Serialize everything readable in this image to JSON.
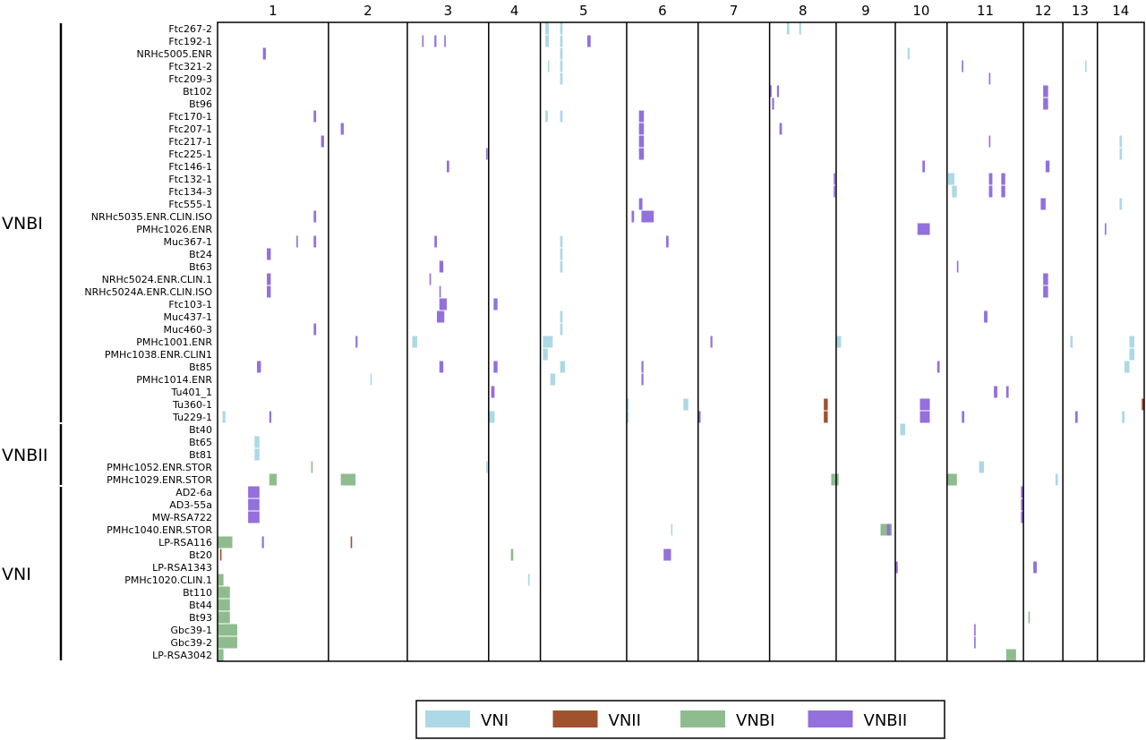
{
  "colors": {
    "VNI": "#add8e6",
    "VNII": "#a0522d",
    "VNBI": "#8fbc8f",
    "VNBII": "#9370db",
    "frame": "#000000"
  },
  "chart_data": {
    "type": "heatmap",
    "title": "",
    "xlabel": "",
    "ylabel": "",
    "chromosomes": [
      {
        "label": "1",
        "start": 0,
        "end": 2.25
      },
      {
        "label": "2",
        "start": 2.25,
        "end": 3.85
      },
      {
        "label": "3",
        "start": 3.85,
        "end": 5.5
      },
      {
        "label": "4",
        "start": 5.5,
        "end": 6.55
      },
      {
        "label": "5",
        "start": 6.55,
        "end": 8.3
      },
      {
        "label": "6",
        "start": 8.3,
        "end": 9.75
      },
      {
        "label": "7",
        "start": 9.75,
        "end": 11.2
      },
      {
        "label": "8",
        "start": 11.2,
        "end": 12.55
      },
      {
        "label": "9",
        "start": 12.55,
        "end": 13.75
      },
      {
        "label": "10",
        "start": 13.75,
        "end": 14.8
      },
      {
        "label": "11",
        "start": 14.8,
        "end": 16.35
      },
      {
        "label": "12",
        "start": 16.35,
        "end": 17.15
      },
      {
        "label": "13",
        "start": 17.15,
        "end": 17.85
      },
      {
        "label": "14",
        "start": 17.85,
        "end": 18.8
      }
    ],
    "x_range": [
      0,
      18.8
    ],
    "samples": [
      "Ftc267-2",
      "Ftc192-1",
      "NRHc5005.ENR",
      "Ftc321-2",
      "Ftc209-3",
      "Bt102",
      "Bt96",
      "Ftc170-1",
      "Ftc207-1",
      "Ftc217-1",
      "Ftc225-1",
      "Ftc146-1",
      "Ftc132-1",
      "Ftc134-3",
      "Ftc555-1",
      "NRHc5035.ENR.CLIN.ISO",
      "PMHc1026.ENR",
      "Muc367-1",
      "Bt24",
      "Bt63",
      "NRHc5024.ENR.CLIN.1",
      "NRHc5024A.ENR.CLIN.ISO",
      "Ftc103-1",
      "Muc437-1",
      "Muc460-3",
      "PMHc1001.ENR",
      "PMHc1038.ENR.CLIN1",
      "Bt85",
      "PMHc1014.ENR",
      "Tu401_1",
      "Tu360-1",
      "Tu229-1",
      "Bt40",
      "Bt65",
      "Bt81",
      "PMHc1052.ENR.STOR",
      "PMHc1029.ENR.STOR",
      "AD2-6a",
      "AD3-55a",
      "MW-RSA722",
      "PMHc1040.ENR.STOR",
      "LP-RSA116",
      "Bt20",
      "LP-RSA1343",
      "PMHc1020.CLIN.1",
      "Bt110",
      "Bt44",
      "Bt93",
      "Gbc39-1",
      "Gbc39-2",
      "LP-RSA3042"
    ],
    "groups": [
      {
        "label": "VNBI",
        "first": 0,
        "last": 31
      },
      {
        "label": "VNBII",
        "first": 32,
        "last": 36
      },
      {
        "label": "VNI",
        "first": 37,
        "last": 50
      }
    ],
    "legend": {
      "placement": "bottom-center",
      "entries": [
        {
          "label": "VNI",
          "color_key": "VNI"
        },
        {
          "label": "VNII",
          "color_key": "VNII"
        },
        {
          "label": "VNBI",
          "color_key": "VNBI"
        },
        {
          "label": "VNBII",
          "color_key": "VNBII"
        }
      ]
    },
    "segments": [
      {
        "row": 0,
        "start": 6.65,
        "end": 6.72,
        "type": "VNI"
      },
      {
        "row": 0,
        "start": 6.95,
        "end": 7.0,
        "type": "VNI"
      },
      {
        "row": 0,
        "start": 11.55,
        "end": 11.6,
        "type": "VNI"
      },
      {
        "row": 0,
        "start": 11.8,
        "end": 11.84,
        "type": "VNI"
      },
      {
        "row": 1,
        "start": 4.15,
        "end": 4.18,
        "type": "VNBII"
      },
      {
        "row": 1,
        "start": 4.4,
        "end": 4.44,
        "type": "VNBII"
      },
      {
        "row": 1,
        "start": 4.6,
        "end": 4.63,
        "type": "VNBII"
      },
      {
        "row": 1,
        "start": 6.65,
        "end": 6.72,
        "type": "VNI"
      },
      {
        "row": 1,
        "start": 6.95,
        "end": 7.0,
        "type": "VNI"
      },
      {
        "row": 1,
        "start": 7.5,
        "end": 7.57,
        "type": "VNBII"
      },
      {
        "row": 2,
        "start": 0.92,
        "end": 0.98,
        "type": "VNBII"
      },
      {
        "row": 2,
        "start": 6.95,
        "end": 7.0,
        "type": "VNI"
      },
      {
        "row": 2,
        "start": 14.0,
        "end": 14.04,
        "type": "VNI"
      },
      {
        "row": 3,
        "start": 6.7,
        "end": 6.73,
        "type": "VNI"
      },
      {
        "row": 3,
        "start": 6.95,
        "end": 7.0,
        "type": "VNI"
      },
      {
        "row": 3,
        "start": 15.1,
        "end": 15.13,
        "type": "VNBII"
      },
      {
        "row": 3,
        "start": 17.6,
        "end": 17.63,
        "type": "VNI"
      },
      {
        "row": 4,
        "start": 6.95,
        "end": 7.0,
        "type": "VNI"
      },
      {
        "row": 4,
        "start": 15.65,
        "end": 15.68,
        "type": "VNBII"
      },
      {
        "row": 5,
        "start": 11.2,
        "end": 11.24,
        "type": "VNBII"
      },
      {
        "row": 5,
        "start": 11.35,
        "end": 11.39,
        "type": "VNBII"
      },
      {
        "row": 5,
        "start": 16.75,
        "end": 16.85,
        "type": "VNBII"
      },
      {
        "row": 6,
        "start": 11.25,
        "end": 11.29,
        "type": "VNBII"
      },
      {
        "row": 6,
        "start": 16.75,
        "end": 16.85,
        "type": "VNBII"
      },
      {
        "row": 7,
        "start": 1.95,
        "end": 2.0,
        "type": "VNBII"
      },
      {
        "row": 7,
        "start": 6.65,
        "end": 6.7,
        "type": "VNI"
      },
      {
        "row": 7,
        "start": 6.95,
        "end": 7.0,
        "type": "VNI"
      },
      {
        "row": 7,
        "start": 8.55,
        "end": 8.65,
        "type": "VNBII"
      },
      {
        "row": 8,
        "start": 2.5,
        "end": 2.56,
        "type": "VNBII"
      },
      {
        "row": 8,
        "start": 8.55,
        "end": 8.65,
        "type": "VNBII"
      },
      {
        "row": 8,
        "start": 11.4,
        "end": 11.45,
        "type": "VNBII"
      },
      {
        "row": 9,
        "start": 2.1,
        "end": 2.16,
        "type": "VNBII"
      },
      {
        "row": 9,
        "start": 8.55,
        "end": 8.65,
        "type": "VNBII"
      },
      {
        "row": 9,
        "start": 15.65,
        "end": 15.68,
        "type": "VNBII"
      },
      {
        "row": 9,
        "start": 18.3,
        "end": 18.35,
        "type": "VNI"
      },
      {
        "row": 10,
        "start": 5.45,
        "end": 5.48,
        "type": "VNBII"
      },
      {
        "row": 10,
        "start": 8.55,
        "end": 8.65,
        "type": "VNBII"
      },
      {
        "row": 10,
        "start": 18.3,
        "end": 18.35,
        "type": "VNI"
      },
      {
        "row": 11,
        "start": 4.65,
        "end": 4.7,
        "type": "VNBII"
      },
      {
        "row": 11,
        "start": 14.3,
        "end": 14.35,
        "type": "VNBII"
      },
      {
        "row": 11,
        "start": 16.8,
        "end": 16.88,
        "type": "VNBII"
      },
      {
        "row": 12,
        "start": 12.5,
        "end": 12.53,
        "type": "VNBII"
      },
      {
        "row": 12,
        "start": 14.82,
        "end": 14.95,
        "type": "VNI"
      },
      {
        "row": 12,
        "start": 15.65,
        "end": 15.72,
        "type": "VNBII"
      },
      {
        "row": 12,
        "start": 15.9,
        "end": 15.98,
        "type": "VNBII"
      },
      {
        "row": 13,
        "start": 12.5,
        "end": 12.53,
        "type": "VNBII"
      },
      {
        "row": 13,
        "start": 14.9,
        "end": 15.0,
        "type": "VNI"
      },
      {
        "row": 13,
        "start": 15.65,
        "end": 15.72,
        "type": "VNBII"
      },
      {
        "row": 13,
        "start": 15.9,
        "end": 15.98,
        "type": "VNBII"
      },
      {
        "row": 14,
        "start": 8.55,
        "end": 8.62,
        "type": "VNBII"
      },
      {
        "row": 14,
        "start": 16.7,
        "end": 16.8,
        "type": "VNBII"
      },
      {
        "row": 14,
        "start": 18.3,
        "end": 18.35,
        "type": "VNI"
      },
      {
        "row": 15,
        "start": 1.95,
        "end": 2.0,
        "type": "VNBII"
      },
      {
        "row": 15,
        "start": 8.4,
        "end": 8.45,
        "type": "VNBII"
      },
      {
        "row": 15,
        "start": 8.6,
        "end": 8.85,
        "type": "VNBII"
      },
      {
        "row": 16,
        "start": 14.2,
        "end": 14.45,
        "type": "VNBII"
      },
      {
        "row": 16,
        "start": 18.0,
        "end": 18.03,
        "type": "VNBII"
      },
      {
        "row": 17,
        "start": 1.6,
        "end": 1.63,
        "type": "VNBII"
      },
      {
        "row": 17,
        "start": 1.95,
        "end": 2.0,
        "type": "VNBII"
      },
      {
        "row": 17,
        "start": 4.4,
        "end": 4.45,
        "type": "VNBII"
      },
      {
        "row": 17,
        "start": 6.95,
        "end": 7.0,
        "type": "VNI"
      },
      {
        "row": 17,
        "start": 9.1,
        "end": 9.15,
        "type": "VNBII"
      },
      {
        "row": 18,
        "start": 1.0,
        "end": 1.08,
        "type": "VNBII"
      },
      {
        "row": 18,
        "start": 6.95,
        "end": 7.0,
        "type": "VNI"
      },
      {
        "row": 19,
        "start": 4.5,
        "end": 4.58,
        "type": "VNBII"
      },
      {
        "row": 19,
        "start": 6.95,
        "end": 7.0,
        "type": "VNI"
      },
      {
        "row": 19,
        "start": 15.0,
        "end": 15.03,
        "type": "VNBII"
      },
      {
        "row": 20,
        "start": 1.0,
        "end": 1.08,
        "type": "VNBII"
      },
      {
        "row": 20,
        "start": 4.3,
        "end": 4.33,
        "type": "VNBII"
      },
      {
        "row": 20,
        "start": 16.75,
        "end": 16.85,
        "type": "VNBII"
      },
      {
        "row": 21,
        "start": 1.0,
        "end": 1.08,
        "type": "VNBII"
      },
      {
        "row": 21,
        "start": 4.5,
        "end": 4.53,
        "type": "VNBII"
      },
      {
        "row": 21,
        "start": 16.75,
        "end": 16.85,
        "type": "VNBII"
      },
      {
        "row": 22,
        "start": 4.5,
        "end": 4.65,
        "type": "VNBII"
      },
      {
        "row": 22,
        "start": 5.6,
        "end": 5.68,
        "type": "VNBII"
      },
      {
        "row": 23,
        "start": 4.45,
        "end": 4.6,
        "type": "VNBII"
      },
      {
        "row": 23,
        "start": 6.95,
        "end": 7.0,
        "type": "VNI"
      },
      {
        "row": 23,
        "start": 15.55,
        "end": 15.62,
        "type": "VNBII"
      },
      {
        "row": 24,
        "start": 1.95,
        "end": 2.0,
        "type": "VNBII"
      },
      {
        "row": 24,
        "start": 6.95,
        "end": 7.0,
        "type": "VNI"
      },
      {
        "row": 25,
        "start": 2.8,
        "end": 2.84,
        "type": "VNBII"
      },
      {
        "row": 25,
        "start": 3.95,
        "end": 4.05,
        "type": "VNI"
      },
      {
        "row": 25,
        "start": 6.6,
        "end": 6.8,
        "type": "VNI"
      },
      {
        "row": 25,
        "start": 10.0,
        "end": 10.04,
        "type": "VNBII"
      },
      {
        "row": 25,
        "start": 12.55,
        "end": 12.65,
        "type": "VNI"
      },
      {
        "row": 25,
        "start": 17.3,
        "end": 17.35,
        "type": "VNI"
      },
      {
        "row": 25,
        "start": 18.5,
        "end": 18.6,
        "type": "VNI"
      },
      {
        "row": 26,
        "start": 6.6,
        "end": 6.7,
        "type": "VNI"
      },
      {
        "row": 26,
        "start": 18.5,
        "end": 18.6,
        "type": "VNI"
      },
      {
        "row": 27,
        "start": 0.8,
        "end": 0.88,
        "type": "VNBII"
      },
      {
        "row": 27,
        "start": 4.5,
        "end": 4.58,
        "type": "VNBII"
      },
      {
        "row": 27,
        "start": 5.6,
        "end": 5.68,
        "type": "VNBII"
      },
      {
        "row": 27,
        "start": 6.95,
        "end": 7.05,
        "type": "VNI"
      },
      {
        "row": 27,
        "start": 8.6,
        "end": 8.64,
        "type": "VNBII"
      },
      {
        "row": 27,
        "start": 14.6,
        "end": 14.65,
        "type": "VNBII"
      },
      {
        "row": 27,
        "start": 18.4,
        "end": 18.5,
        "type": "VNI"
      },
      {
        "row": 28,
        "start": 3.1,
        "end": 3.13,
        "type": "VNI"
      },
      {
        "row": 28,
        "start": 6.75,
        "end": 6.85,
        "type": "VNI"
      },
      {
        "row": 28,
        "start": 8.6,
        "end": 8.64,
        "type": "VNBII"
      },
      {
        "row": 29,
        "start": 5.55,
        "end": 5.62,
        "type": "VNBII"
      },
      {
        "row": 29,
        "start": 15.75,
        "end": 15.82,
        "type": "VNBII"
      },
      {
        "row": 29,
        "start": 16.0,
        "end": 16.05,
        "type": "VNBII"
      },
      {
        "row": 30,
        "start": 8.3,
        "end": 8.34,
        "type": "VNI"
      },
      {
        "row": 30,
        "start": 9.45,
        "end": 9.55,
        "type": "VNI"
      },
      {
        "row": 30,
        "start": 12.3,
        "end": 12.38,
        "type": "VNII"
      },
      {
        "row": 30,
        "start": 14.25,
        "end": 14.45,
        "type": "VNBII"
      },
      {
        "row": 30,
        "start": 18.75,
        "end": 18.8,
        "type": "VNII"
      },
      {
        "row": 31,
        "start": 0.1,
        "end": 0.16,
        "type": "VNI"
      },
      {
        "row": 31,
        "start": 1.05,
        "end": 1.09,
        "type": "VNBII"
      },
      {
        "row": 31,
        "start": 5.5,
        "end": 5.62,
        "type": "VNI"
      },
      {
        "row": 31,
        "start": 8.3,
        "end": 8.34,
        "type": "VNI"
      },
      {
        "row": 31,
        "start": 9.75,
        "end": 9.8,
        "type": "VNBII"
      },
      {
        "row": 31,
        "start": 12.3,
        "end": 12.38,
        "type": "VNII"
      },
      {
        "row": 31,
        "start": 14.25,
        "end": 14.45,
        "type": "VNBII"
      },
      {
        "row": 31,
        "start": 15.1,
        "end": 15.15,
        "type": "VNBII"
      },
      {
        "row": 31,
        "start": 17.4,
        "end": 17.45,
        "type": "VNBII"
      },
      {
        "row": 31,
        "start": 18.35,
        "end": 18.4,
        "type": "VNI"
      },
      {
        "row": 32,
        "start": 13.85,
        "end": 13.95,
        "type": "VNI"
      },
      {
        "row": 33,
        "start": 0.75,
        "end": 0.85,
        "type": "VNI"
      },
      {
        "row": 34,
        "start": 0.75,
        "end": 0.85,
        "type": "VNI"
      },
      {
        "row": 35,
        "start": 1.9,
        "end": 1.93,
        "type": "VNBI"
      },
      {
        "row": 35,
        "start": 5.45,
        "end": 5.48,
        "type": "VNI"
      },
      {
        "row": 35,
        "start": 15.45,
        "end": 15.55,
        "type": "VNI"
      },
      {
        "row": 36,
        "start": 1.05,
        "end": 1.2,
        "type": "VNBI"
      },
      {
        "row": 36,
        "start": 2.5,
        "end": 2.8,
        "type": "VNBI"
      },
      {
        "row": 36,
        "start": 12.45,
        "end": 12.6,
        "type": "VNBI"
      },
      {
        "row": 36,
        "start": 14.8,
        "end": 15.0,
        "type": "VNBI"
      },
      {
        "row": 36,
        "start": 17.0,
        "end": 17.05,
        "type": "VNI"
      },
      {
        "row": 37,
        "start": 0.62,
        "end": 0.85,
        "type": "VNBII"
      },
      {
        "row": 37,
        "start": 16.3,
        "end": 16.34,
        "type": "VNBII"
      },
      {
        "row": 38,
        "start": 0.62,
        "end": 0.85,
        "type": "VNBII"
      },
      {
        "row": 38,
        "start": 16.3,
        "end": 16.34,
        "type": "VNBII"
      },
      {
        "row": 39,
        "start": 0.62,
        "end": 0.85,
        "type": "VNBII"
      },
      {
        "row": 39,
        "start": 16.3,
        "end": 16.34,
        "type": "VNBII"
      },
      {
        "row": 40,
        "start": 9.2,
        "end": 9.23,
        "type": "VNI"
      },
      {
        "row": 40,
        "start": 13.45,
        "end": 13.68,
        "type": "VNBI"
      },
      {
        "row": 40,
        "start": 13.58,
        "end": 13.65,
        "type": "VNBII"
      },
      {
        "row": 41,
        "start": 0.0,
        "end": 0.3,
        "type": "VNBI"
      },
      {
        "row": 41,
        "start": 0.9,
        "end": 0.94,
        "type": "VNBII"
      },
      {
        "row": 41,
        "start": 2.7,
        "end": 2.73,
        "type": "VNII"
      },
      {
        "row": 42,
        "start": 0.05,
        "end": 0.08,
        "type": "VNII"
      },
      {
        "row": 42,
        "start": 5.95,
        "end": 6.0,
        "type": "VNBI"
      },
      {
        "row": 42,
        "start": 9.05,
        "end": 9.2,
        "type": "VNBII"
      },
      {
        "row": 43,
        "start": 13.75,
        "end": 13.8,
        "type": "VNBII"
      },
      {
        "row": 43,
        "start": 16.55,
        "end": 16.62,
        "type": "VNBII"
      },
      {
        "row": 44,
        "start": 0.0,
        "end": 0.12,
        "type": "VNBI"
      },
      {
        "row": 44,
        "start": 6.3,
        "end": 6.33,
        "type": "VNI"
      },
      {
        "row": 45,
        "start": 0.0,
        "end": 0.25,
        "type": "VNBI"
      },
      {
        "row": 46,
        "start": 0.0,
        "end": 0.25,
        "type": "VNBI"
      },
      {
        "row": 47,
        "start": 0.0,
        "end": 0.25,
        "type": "VNBI"
      },
      {
        "row": 47,
        "start": 16.45,
        "end": 16.48,
        "type": "VNBI"
      },
      {
        "row": 48,
        "start": 0.0,
        "end": 0.4,
        "type": "VNBI"
      },
      {
        "row": 48,
        "start": 15.35,
        "end": 15.38,
        "type": "VNBII"
      },
      {
        "row": 49,
        "start": 0.0,
        "end": 0.4,
        "type": "VNBI"
      },
      {
        "row": 49,
        "start": 15.35,
        "end": 15.38,
        "type": "VNBII"
      },
      {
        "row": 50,
        "start": 0.0,
        "end": 0.12,
        "type": "VNBI"
      },
      {
        "row": 50,
        "start": 16.0,
        "end": 16.2,
        "type": "VNBI"
      }
    ]
  }
}
